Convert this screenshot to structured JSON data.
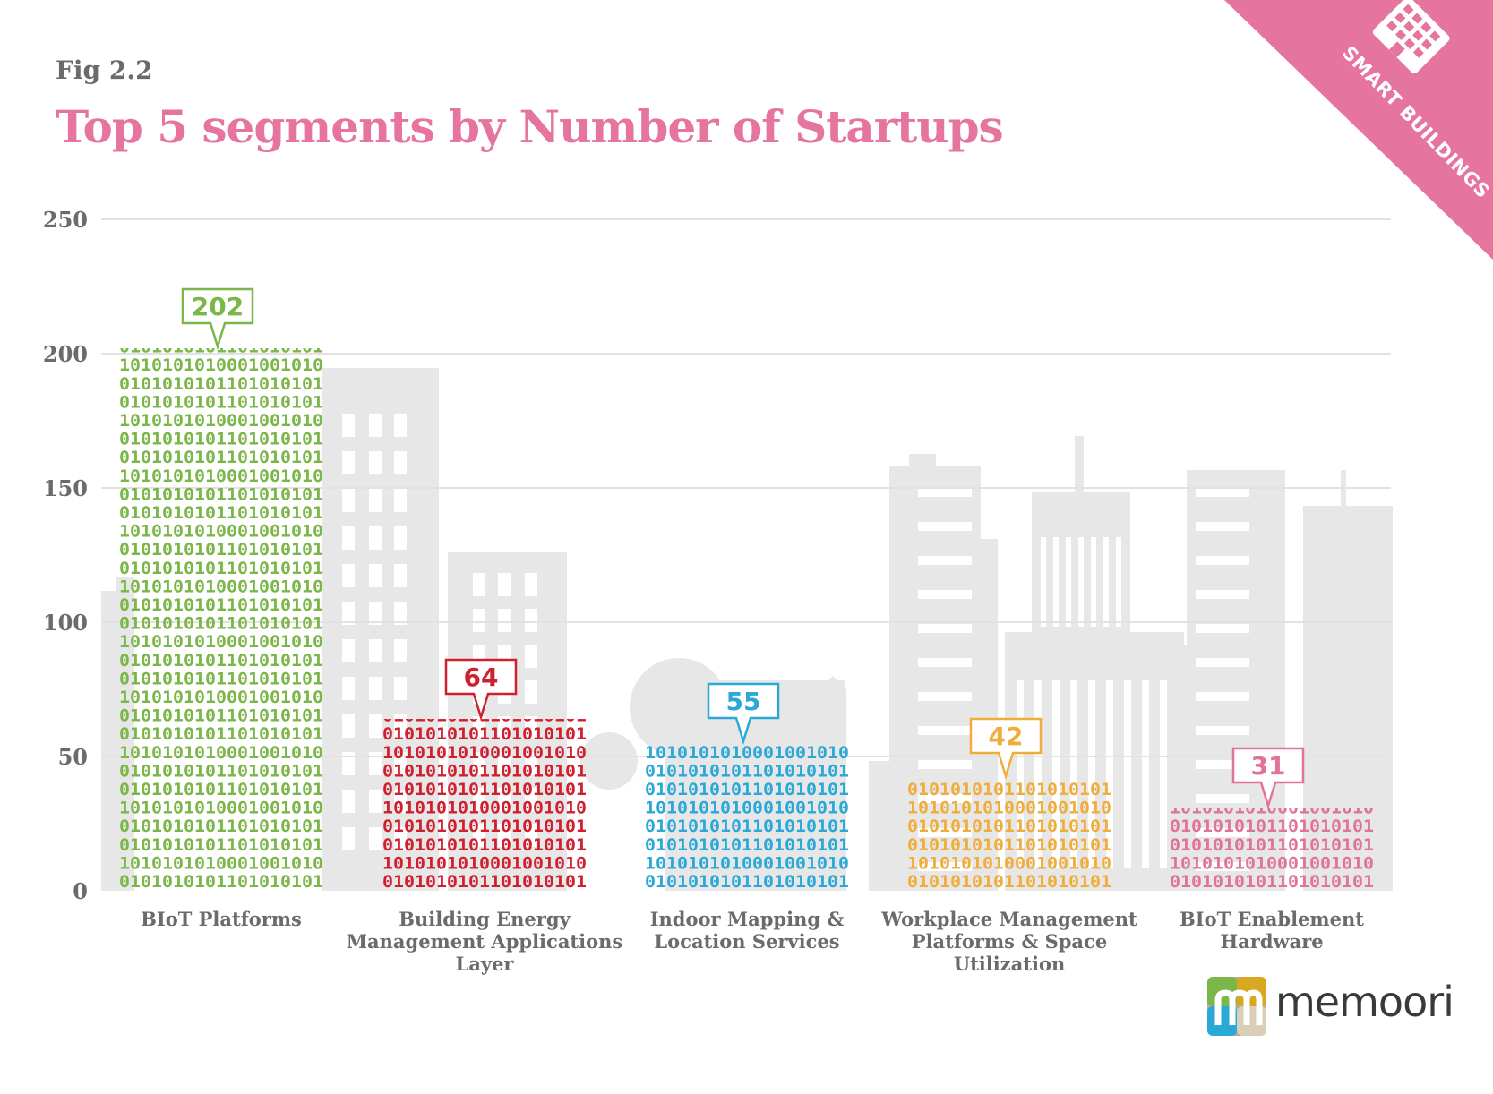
{
  "figure": {
    "label": "Fig 2.2",
    "title": "Top 5 segments by Number of Startups"
  },
  "badge": {
    "text": "SMART BUILDINGS",
    "color": "#e5749f",
    "icon": "building-grid-icon"
  },
  "logo": {
    "text": "memoori",
    "icon": "memoori-logo-icon"
  },
  "chart_data": {
    "type": "bar",
    "title": "Top 5 segments by Number of Startups",
    "xlabel": "",
    "ylabel": "",
    "ylim": [
      0,
      250
    ],
    "yticks": [
      0,
      50,
      100,
      150,
      200,
      250
    ],
    "grid": true,
    "categories": [
      "BIoT Platforms",
      "Building Energy Management Applications Layer",
      "Indoor Mapping & Location Services",
      "Workplace Management Platforms & Space Utilization",
      "BIoT Enablement Hardware"
    ],
    "category_lines": [
      [
        "BIoT Platforms"
      ],
      [
        "Building Energy",
        "Management Applications",
        "Layer"
      ],
      [
        "Indoor Mapping &",
        "Location Services"
      ],
      [
        "Workplace Management",
        "Platforms & Space",
        "Utilization"
      ],
      [
        "BIoT Enablement",
        "Hardware"
      ]
    ],
    "values": [
      202,
      64,
      55,
      42,
      31
    ],
    "value_labels": [
      "202",
      "64",
      "55",
      "42",
      "31"
    ],
    "colors": [
      "#7ab648",
      "#d0202f",
      "#2aa8d8",
      "#f0ad3c",
      "#e0739c"
    ]
  }
}
